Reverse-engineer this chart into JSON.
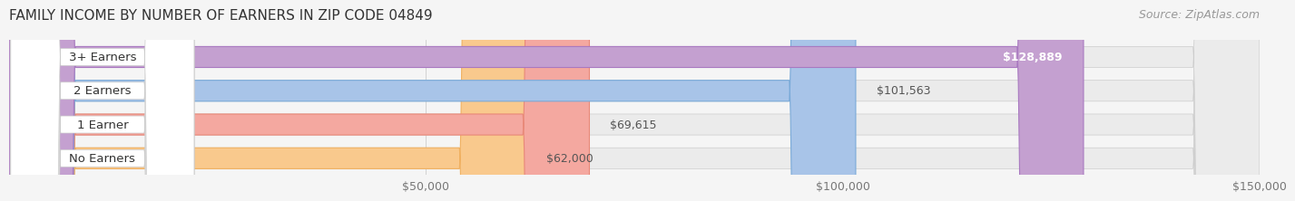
{
  "title": "FAMILY INCOME BY NUMBER OF EARNERS IN ZIP CODE 04849",
  "source": "Source: ZipAtlas.com",
  "categories": [
    "No Earners",
    "1 Earner",
    "2 Earners",
    "3+ Earners"
  ],
  "values": [
    62000,
    69615,
    101563,
    128889
  ],
  "labels": [
    "$62,000",
    "$69,615",
    "$101,563",
    "$128,889"
  ],
  "bar_colors": [
    "#f9c98d",
    "#f4a8a0",
    "#a8c4e8",
    "#c4a0d0"
  ],
  "bar_edge_colors": [
    "#f0b060",
    "#e88878",
    "#7aaad8",
    "#a878c0"
  ],
  "label_colors": [
    "#555555",
    "#555555",
    "#555555",
    "#ffffff"
  ],
  "background_color": "#f5f5f5",
  "bar_bg_color": "#e8e8e8",
  "xlim": [
    0,
    150000
  ],
  "xticks": [
    50000,
    100000,
    150000
  ],
  "xticklabels": [
    "$50,000",
    "$100,000",
    "$150,000"
  ],
  "title_fontsize": 11,
  "source_fontsize": 9,
  "label_fontsize": 9,
  "tick_fontsize": 9,
  "category_fontsize": 9.5
}
